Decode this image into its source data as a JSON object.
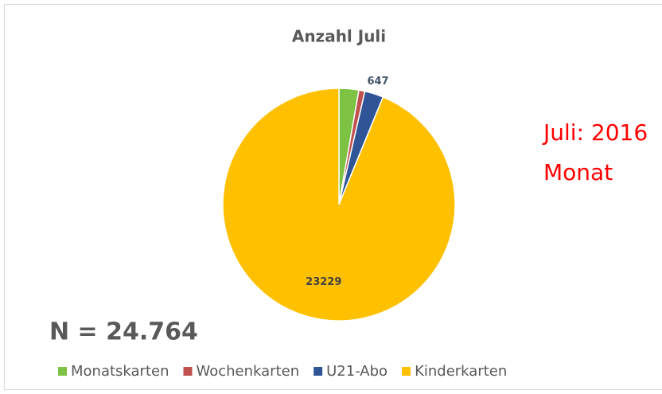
{
  "chart_data": {
    "type": "pie",
    "title": "Anzahl Juli",
    "categories": [
      "Monatskarten",
      "Wochenkarten",
      "U21-Abo",
      "Kinderkarten"
    ],
    "values": [
      680,
      208,
      647,
      23229
    ],
    "colors": [
      "#7dc242",
      "#c0504d",
      "#2f5597",
      "#ffc000"
    ],
    "labeled": [
      false,
      false,
      true,
      true
    ],
    "legend": "bottom",
    "annotations": [
      "N = 24.764",
      "Juli: 2016",
      "Monat"
    ]
  }
}
